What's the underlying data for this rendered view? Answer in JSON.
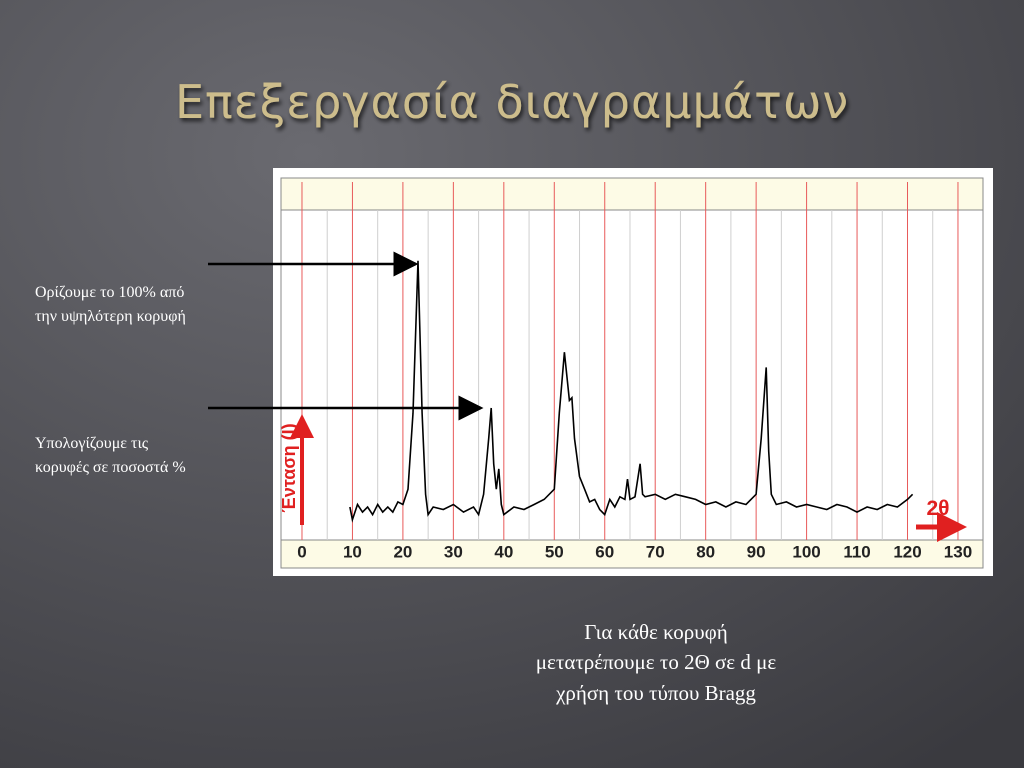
{
  "title": "Επεξεργασία διαγραμμάτων",
  "notes": [
    {
      "lines": [
        "Ορίζουμε το 100% από",
        "την υψηλότερη κορυφή"
      ]
    },
    {
      "lines": [
        "Υπολογίζουμε τις",
        "κορυφές σε ποσοστά %"
      ]
    }
  ],
  "caption": {
    "lines": [
      "Για κάθε κορυφή",
      "μετατρέπουμε το 2Θ σε d με",
      "χρήση του τύπου Bragg"
    ]
  },
  "chart_data": {
    "type": "line",
    "xlabel": "2θ",
    "ylabel": "Ένταση (I)",
    "color": "#000000",
    "xlim": [
      -4,
      135
    ],
    "xticks": [
      0,
      10,
      20,
      30,
      40,
      50,
      60,
      70,
      80,
      90,
      100,
      110,
      120,
      130
    ],
    "ylim": [
      -10,
      120
    ],
    "grid": true,
    "x": [
      9.5,
      10,
      11,
      12,
      13,
      14,
      15,
      16,
      17,
      18,
      19,
      20,
      21,
      22,
      23,
      23.8,
      24.5,
      25,
      26,
      28,
      30,
      32,
      34,
      35,
      36,
      37,
      37.5,
      38,
      38.5,
      39,
      39.5,
      40,
      42,
      44,
      46,
      48,
      50,
      51,
      52,
      53,
      53.5,
      54,
      55,
      56,
      57,
      58,
      59,
      60,
      61,
      62,
      63,
      64,
      64.5,
      65,
      66,
      67,
      67.5,
      68,
      70,
      72,
      74,
      76,
      78,
      80,
      82,
      84,
      86,
      88,
      90,
      91,
      92,
      92.5,
      93,
      94,
      96,
      98,
      100,
      102,
      104,
      106,
      108,
      110,
      112,
      114,
      116,
      118,
      120,
      121
    ],
    "values": [
      3,
      -2,
      4,
      1,
      3,
      0,
      4,
      1,
      3,
      1,
      5,
      4,
      10,
      40,
      100,
      40,
      8,
      0,
      3,
      2,
      4,
      1,
      3,
      0,
      8,
      30,
      42,
      20,
      10,
      18,
      4,
      0,
      3,
      2,
      4,
      6,
      10,
      40,
      64,
      45,
      46,
      30,
      15,
      10,
      5,
      6,
      2,
      0,
      6,
      3,
      7,
      6,
      14,
      6,
      7,
      20,
      8,
      7,
      8,
      6,
      8,
      7,
      6,
      4,
      5,
      3,
      5,
      4,
      8,
      30,
      58,
      25,
      8,
      4,
      5,
      3,
      4,
      3,
      2,
      4,
      3,
      1,
      3,
      2,
      4,
      3,
      6,
      8
    ]
  }
}
